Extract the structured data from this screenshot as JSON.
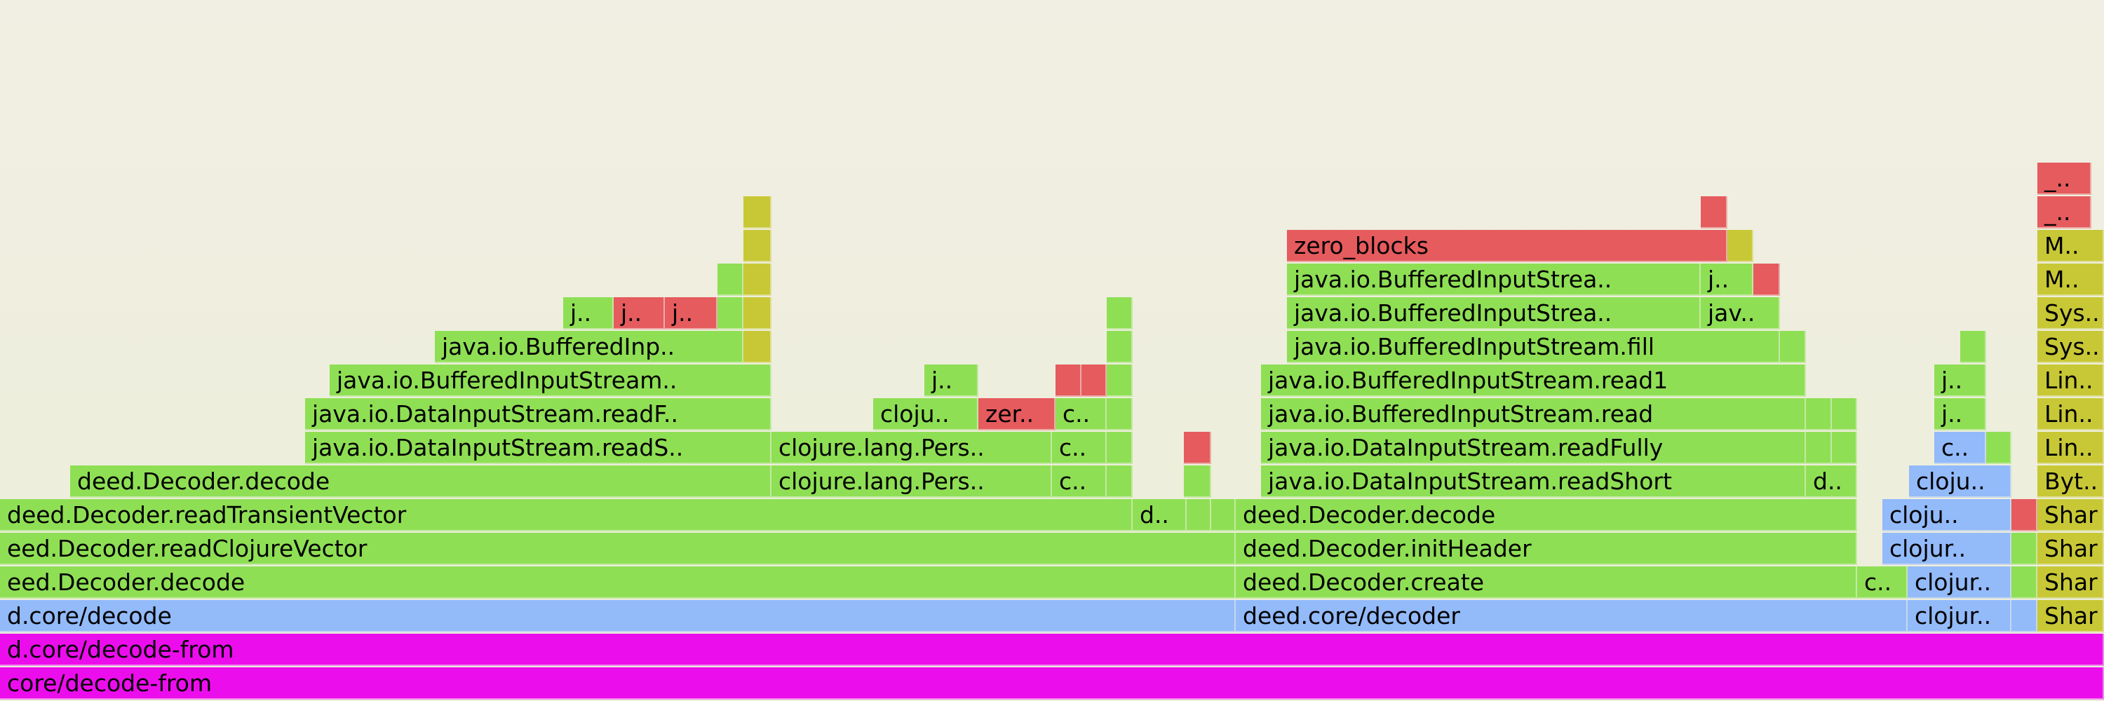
{
  "chart_data": {
    "type": "flamegraph",
    "colors": {
      "java": "#8fdf55",
      "clojure": "#93baf9",
      "native": "#e55b5e",
      "jvm": "#c8c836",
      "root": "#ec0ded"
    },
    "rows": [
      [
        {
          "text": "core/decode-from",
          "start": 0,
          "end": 3000,
          "kind": "root"
        }
      ],
      [
        {
          "text": "d.core/decode-from",
          "start": 0,
          "end": 3000,
          "kind": "root"
        }
      ],
      [
        {
          "text": "d.core/decode",
          "start": 0,
          "end": 1762,
          "kind": "clojure"
        },
        {
          "text": "deed.core/decoder",
          "start": 1762,
          "end": 2720,
          "kind": "clojure"
        },
        {
          "text": "clojur..",
          "start": 2720,
          "end": 2868,
          "kind": "clojure"
        },
        {
          "text": "",
          "start": 2868,
          "end": 2905,
          "kind": "clojure"
        },
        {
          "text": "Shar",
          "start": 2905,
          "end": 3000,
          "kind": "jvm"
        }
      ],
      [
        {
          "text": "eed.Decoder.decode",
          "start": 0,
          "end": 1762,
          "kind": "java"
        },
        {
          "text": "deed.Decoder.create",
          "start": 1762,
          "end": 2648,
          "kind": "java"
        },
        {
          "text": "c..",
          "start": 2648,
          "end": 2720,
          "kind": "java"
        },
        {
          "text": "clojur..",
          "start": 2720,
          "end": 2868,
          "kind": "clojure"
        },
        {
          "text": "",
          "start": 2868,
          "end": 2905,
          "kind": "java"
        },
        {
          "text": "Shar",
          "start": 2905,
          "end": 3000,
          "kind": "jvm"
        }
      ],
      [
        {
          "text": "eed.Decoder.readClojureVector",
          "start": 0,
          "end": 1762,
          "kind": "java"
        },
        {
          "text": "deed.Decoder.initHeader",
          "start": 1762,
          "end": 2648,
          "kind": "java"
        },
        {
          "text": "clojur..",
          "start": 2684,
          "end": 2868,
          "kind": "clojure"
        },
        {
          "text": "",
          "start": 2868,
          "end": 2905,
          "kind": "java"
        },
        {
          "text": "Shar",
          "start": 2905,
          "end": 3000,
          "kind": "jvm"
        }
      ],
      [
        {
          "text": "deed.Decoder.readTransientVector",
          "start": 0,
          "end": 1615,
          "kind": "java"
        },
        {
          "text": "d..",
          "start": 1615,
          "end": 1692,
          "kind": "java"
        },
        {
          "text": "",
          "start": 1692,
          "end": 1727,
          "kind": "java"
        },
        {
          "text": "",
          "start": 1727,
          "end": 1762,
          "kind": "java"
        },
        {
          "text": "deed.Decoder.decode",
          "start": 1762,
          "end": 2648,
          "kind": "java"
        },
        {
          "text": "cloju..",
          "start": 2684,
          "end": 2868,
          "kind": "clojure"
        },
        {
          "text": "",
          "start": 2868,
          "end": 2905,
          "kind": "native"
        },
        {
          "text": "Shar",
          "start": 2905,
          "end": 3000,
          "kind": "jvm"
        }
      ],
      [
        {
          "text": "deed.Decoder.decode",
          "start": 100,
          "end": 1100,
          "kind": "java"
        },
        {
          "text": "clojure.lang.Pers..",
          "start": 1100,
          "end": 1500,
          "kind": "java"
        },
        {
          "text": "c..",
          "start": 1500,
          "end": 1578,
          "kind": "java"
        },
        {
          "text": "",
          "start": 1578,
          "end": 1615,
          "kind": "java"
        },
        {
          "text": "",
          "start": 1688,
          "end": 1727,
          "kind": "java"
        },
        {
          "text": "java.io.DataInputStream.readShort",
          "start": 1798,
          "end": 2575,
          "kind": "java"
        },
        {
          "text": "d..",
          "start": 2575,
          "end": 2648,
          "kind": "java"
        },
        {
          "text": "cloju..",
          "start": 2722,
          "end": 2868,
          "kind": "clojure"
        },
        {
          "text": "Byt..",
          "start": 2905,
          "end": 3000,
          "kind": "jvm"
        }
      ],
      [
        {
          "text": "java.io.DataInputStream.readS..",
          "start": 435,
          "end": 1100,
          "kind": "java"
        },
        {
          "text": "clojure.lang.Pers..",
          "start": 1100,
          "end": 1500,
          "kind": "java"
        },
        {
          "text": "c..",
          "start": 1500,
          "end": 1578,
          "kind": "java"
        },
        {
          "text": "",
          "start": 1578,
          "end": 1615,
          "kind": "java"
        },
        {
          "text": "",
          "start": 1688,
          "end": 1727,
          "kind": "native"
        },
        {
          "text": "java.io.DataInputStream.readFully",
          "start": 1798,
          "end": 2575,
          "kind": "java"
        },
        {
          "text": "",
          "start": 2575,
          "end": 2612,
          "kind": "java"
        },
        {
          "text": "",
          "start": 2612,
          "end": 2648,
          "kind": "java"
        },
        {
          "text": "c..",
          "start": 2758,
          "end": 2832,
          "kind": "clojure"
        },
        {
          "text": "",
          "start": 2832,
          "end": 2868,
          "kind": "java"
        },
        {
          "text": "Lin..",
          "start": 2905,
          "end": 3000,
          "kind": "jvm"
        }
      ],
      [
        {
          "text": "java.io.DataInputStream.readF..",
          "start": 435,
          "end": 1100,
          "kind": "java"
        },
        {
          "text": "cloju..",
          "start": 1245,
          "end": 1395,
          "kind": "java"
        },
        {
          "text": "zer..",
          "start": 1395,
          "end": 1505,
          "kind": "native"
        },
        {
          "text": "c..",
          "start": 1505,
          "end": 1578,
          "kind": "java"
        },
        {
          "text": "",
          "start": 1578,
          "end": 1615,
          "kind": "java"
        },
        {
          "text": "java.io.BufferedInputStream.read",
          "start": 1798,
          "end": 2575,
          "kind": "java"
        },
        {
          "text": "",
          "start": 2575,
          "end": 2612,
          "kind": "java"
        },
        {
          "text": "",
          "start": 2612,
          "end": 2648,
          "kind": "java"
        },
        {
          "text": "j..",
          "start": 2758,
          "end": 2832,
          "kind": "java"
        },
        {
          "text": "Lin..",
          "start": 2905,
          "end": 3000,
          "kind": "jvm"
        }
      ],
      [
        {
          "text": "java.io.BufferedInputStream..",
          "start": 470,
          "end": 1100,
          "kind": "java"
        },
        {
          "text": "j..",
          "start": 1318,
          "end": 1395,
          "kind": "java"
        },
        {
          "text": "",
          "start": 1505,
          "end": 1542,
          "kind": "native"
        },
        {
          "text": "",
          "start": 1542,
          "end": 1578,
          "kind": "native"
        },
        {
          "text": "",
          "start": 1578,
          "end": 1615,
          "kind": "java"
        },
        {
          "text": "java.io.BufferedInputStream.read1",
          "start": 1798,
          "end": 2575,
          "kind": "java"
        },
        {
          "text": "j..",
          "start": 2758,
          "end": 2832,
          "kind": "java"
        },
        {
          "text": "Lin..",
          "start": 2905,
          "end": 3000,
          "kind": "jvm"
        }
      ],
      [
        {
          "text": "java.io.BufferedInp..",
          "start": 620,
          "end": 1060,
          "kind": "java"
        },
        {
          "text": "",
          "start": 1060,
          "end": 1100,
          "kind": "jvm"
        },
        {
          "text": "",
          "start": 1578,
          "end": 1615,
          "kind": "java"
        },
        {
          "text": "java.io.BufferedInputStream.fill",
          "start": 1835,
          "end": 2538,
          "kind": "java"
        },
        {
          "text": "",
          "start": 2538,
          "end": 2575,
          "kind": "java"
        },
        {
          "text": "",
          "start": 2795,
          "end": 2832,
          "kind": "java"
        },
        {
          "text": "Sys..",
          "start": 2905,
          "end": 3000,
          "kind": "jvm"
        }
      ],
      [
        {
          "text": "j..",
          "start": 803,
          "end": 875,
          "kind": "java"
        },
        {
          "text": "j..",
          "start": 875,
          "end": 948,
          "kind": "native"
        },
        {
          "text": "j..",
          "start": 948,
          "end": 1023,
          "kind": "native"
        },
        {
          "text": "",
          "start": 1023,
          "end": 1060,
          "kind": "java"
        },
        {
          "text": "",
          "start": 1060,
          "end": 1100,
          "kind": "jvm"
        },
        {
          "text": "",
          "start": 1578,
          "end": 1615,
          "kind": "java"
        },
        {
          "text": "java.io.BufferedInputStrea..",
          "start": 1835,
          "end": 2425,
          "kind": "java"
        },
        {
          "text": "jav..",
          "start": 2425,
          "end": 2538,
          "kind": "java"
        },
        {
          "text": "Sys..",
          "start": 2905,
          "end": 3000,
          "kind": "jvm"
        }
      ],
      [
        {
          "text": "",
          "start": 1023,
          "end": 1060,
          "kind": "java"
        },
        {
          "text": "",
          "start": 1060,
          "end": 1100,
          "kind": "jvm"
        },
        {
          "text": "java.io.BufferedInputStrea..",
          "start": 1835,
          "end": 2425,
          "kind": "java"
        },
        {
          "text": "j..",
          "start": 2425,
          "end": 2500,
          "kind": "java"
        },
        {
          "text": "",
          "start": 2500,
          "end": 2538,
          "kind": "native"
        },
        {
          "text": "M..",
          "start": 2905,
          "end": 3000,
          "kind": "jvm"
        }
      ],
      [
        {
          "text": "",
          "start": 1060,
          "end": 1100,
          "kind": "jvm"
        },
        {
          "text": "zero_blocks",
          "start": 1835,
          "end": 2463,
          "kind": "native"
        },
        {
          "text": "",
          "start": 2463,
          "end": 2500,
          "kind": "jvm"
        },
        {
          "text": "M..",
          "start": 2905,
          "end": 3000,
          "kind": "jvm"
        }
      ],
      [
        {
          "text": "",
          "start": 1060,
          "end": 1100,
          "kind": "jvm"
        },
        {
          "text": "",
          "start": 2425,
          "end": 2463,
          "kind": "native"
        },
        {
          "text": "_..",
          "start": 2905,
          "end": 2982,
          "kind": "native"
        }
      ],
      [
        {
          "text": "_..",
          "start": 2905,
          "end": 2982,
          "kind": "native"
        }
      ]
    ]
  }
}
